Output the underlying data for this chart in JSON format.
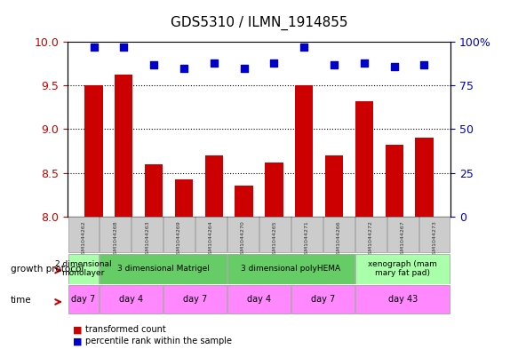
{
  "title": "GDS5310 / ILMN_1914855",
  "samples": [
    "GSM1044262",
    "GSM1044268",
    "GSM1044263",
    "GSM1044269",
    "GSM1044264",
    "GSM1044270",
    "GSM1044265",
    "GSM1044271",
    "GSM1044266",
    "GSM1044272",
    "GSM1044267",
    "GSM1044273"
  ],
  "bar_values": [
    9.5,
    9.62,
    8.6,
    8.42,
    8.7,
    8.35,
    8.62,
    9.5,
    8.7,
    9.32,
    8.82,
    8.9
  ],
  "percentile_values": [
    97,
    97,
    87,
    85,
    88,
    85,
    88,
    97,
    87,
    88,
    86,
    87
  ],
  "ylim": [
    8.0,
    10.0
  ],
  "yticks": [
    8.0,
    8.5,
    9.0,
    9.5,
    10.0
  ],
  "y2lim": [
    0,
    100
  ],
  "y2ticks": [
    0,
    25,
    50,
    75,
    100
  ],
  "y2ticklabels": [
    "0",
    "25",
    "50",
    "75",
    "100%"
  ],
  "bar_color": "#cc0000",
  "percentile_color": "#0000cc",
  "growth_protocol_groups": [
    {
      "label": "2 dimensional\nmonolayer",
      "start": 0,
      "end": 1,
      "color": "#aaffaa"
    },
    {
      "label": "3 dimensional Matrigel",
      "start": 1,
      "end": 5,
      "color": "#66cc66"
    },
    {
      "label": "3 dimensional polyHEMA",
      "start": 5,
      "end": 9,
      "color": "#66cc66"
    },
    {
      "label": "xenograph (mam\nmary fat pad)",
      "start": 9,
      "end": 12,
      "color": "#aaffaa"
    }
  ],
  "time_groups": [
    {
      "label": "day 7",
      "start": 0,
      "end": 1,
      "color": "#ff88ff"
    },
    {
      "label": "day 4",
      "start": 1,
      "end": 3,
      "color": "#ff88ff"
    },
    {
      "label": "day 7",
      "start": 3,
      "end": 5,
      "color": "#ff88ff"
    },
    {
      "label": "day 4",
      "start": 5,
      "end": 7,
      "color": "#ff88ff"
    },
    {
      "label": "day 7",
      "start": 7,
      "end": 9,
      "color": "#ff88ff"
    },
    {
      "label": "day 43",
      "start": 9,
      "end": 12,
      "color": "#ff88ff"
    }
  ],
  "legend_items": [
    {
      "label": "transformed count",
      "color": "#cc0000",
      "marker": "s"
    },
    {
      "label": "percentile rank within the sample",
      "color": "#0000cc",
      "marker": "s"
    }
  ],
  "sample_box_color": "#cccccc",
  "sample_text_color": "#333333",
  "grid_color": "#000000",
  "xlabel_color": "#cc0000",
  "ylabel_right_color": "#0000cc"
}
